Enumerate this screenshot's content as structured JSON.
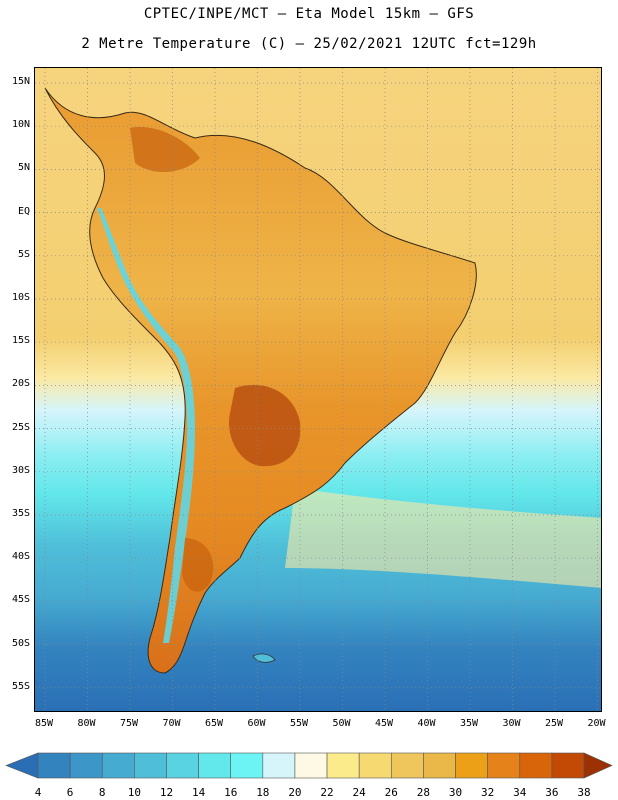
{
  "header": {
    "line1": "CPTEC/INPE/MCT –  Eta Model 15km – GFS",
    "line2": "2 Metre Temperature (C) – 25/02/2021 12UTC fct=129h"
  },
  "axes": {
    "lat_labels": [
      "15N",
      "10N",
      "5N",
      "EQ",
      "5S",
      "10S",
      "15S",
      "20S",
      "25S",
      "30S",
      "35S",
      "40S",
      "45S",
      "50S",
      "55S"
    ],
    "lon_labels": [
      "85W",
      "80W",
      "75W",
      "70W",
      "65W",
      "60W",
      "55W",
      "50W",
      "45W",
      "40W",
      "35W",
      "30W",
      "25W",
      "20W"
    ]
  },
  "colorbar": {
    "labels": [
      "4",
      "6",
      "8",
      "10",
      "12",
      "14",
      "16",
      "18",
      "20",
      "22",
      "24",
      "26",
      "28",
      "30",
      "32",
      "34",
      "36",
      "38"
    ],
    "colors": [
      "#2a6fb5",
      "#3383bf",
      "#3c97c8",
      "#46abd1",
      "#4fbfd9",
      "#59d3e2",
      "#62e7ea",
      "#6cf3f3",
      "#d6f5fb",
      "#fdf9e4",
      "#fbeb8a",
      "#f6d971",
      "#efc65c",
      "#e9b848",
      "#eca018",
      "#e5831a",
      "#d8650a",
      "#c24a05",
      "#9c3103"
    ]
  },
  "palette": {
    "ocean_warm": "#f5d07a",
    "ocean_pale": "#fdeaa8",
    "ocean_cool1": "#d6f5fb",
    "ocean_cool2": "#62e7ea",
    "ocean_cool3": "#4fbfd9",
    "ocean_cold": "#3c97c8",
    "ocean_deep": "#2a6fb5",
    "land_hot": "#c8610e",
    "land_warm": "#e89a2a",
    "land_mild": "#f2c150",
    "andes": "#5fd6e6"
  }
}
